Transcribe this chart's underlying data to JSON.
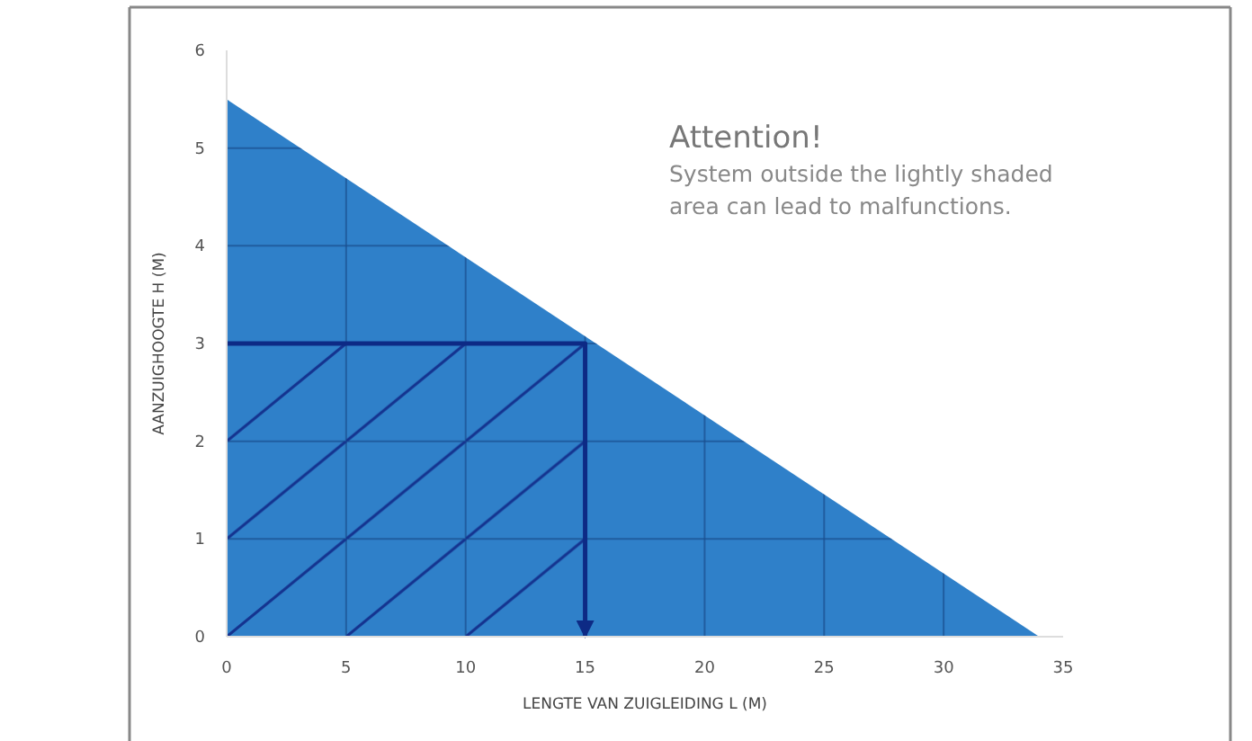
{
  "chart_data": {
    "type": "area",
    "xlabel": "LENGTE VAN ZUIGLEIDING L (M)",
    "ylabel": "AANZUIGHOOGTE H (M)",
    "xlim": [
      0,
      35
    ],
    "ylim": [
      0,
      6
    ],
    "xticks": [
      0,
      5,
      10,
      15,
      20,
      25,
      30,
      35
    ],
    "yticks": [
      0,
      1,
      2,
      3,
      4,
      5,
      6
    ],
    "grid": true,
    "marker": "none",
    "series": [
      {
        "color": "#2f80c9",
        "x": [
          0,
          34
        ],
        "values": [
          5.5,
          0
        ]
      },
      {
        "type": "line",
        "color": "#0d2a85",
        "x": [
          0,
          15,
          15
        ],
        "values": [
          3,
          3,
          0
        ],
        "line_style": "solid"
      }
    ],
    "annotations": [
      "Attention!",
      "System outside the lightly shaded area can lead to malfunctions."
    ]
  }
}
